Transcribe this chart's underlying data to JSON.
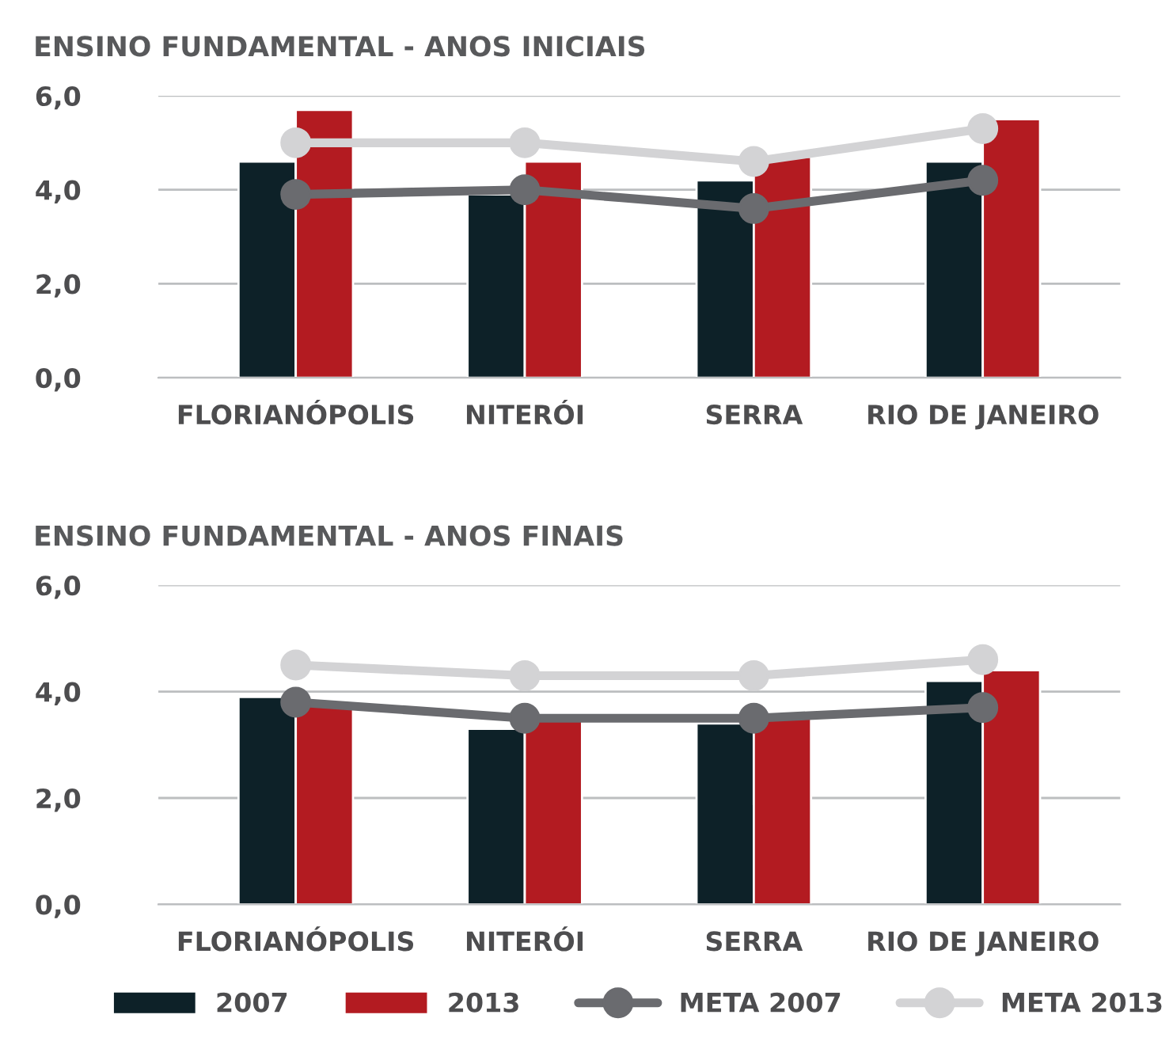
{
  "chart_data": [
    {
      "type": "bar",
      "title": "ENSINO FUNDAMENTAL - ANOS INICIAIS",
      "categories": [
        "FLORIANÓPOLIS",
        "NITERÓI",
        "SERRA",
        "RIO DE JANEIRO"
      ],
      "series": [
        {
          "color": "#0d2128",
          "values": [
            4.6,
            3.9,
            4.2,
            4.6
          ]
        },
        {
          "color": "#b31b21",
          "values": [
            5.7,
            4.6,
            4.7,
            5.5
          ]
        },
        {
          "type": "line",
          "color": "#6a6b6f",
          "values": [
            3.9,
            4.0,
            3.6,
            4.2
          ]
        },
        {
          "type": "line",
          "color": "#d3d3d5",
          "values": [
            5.0,
            5.0,
            4.6,
            5.3
          ]
        }
      ],
      "ylim": [
        0,
        6
      ],
      "yticks": [
        {
          "value": 0,
          "label": "0,0"
        },
        {
          "value": 2,
          "label": "2,0"
        },
        {
          "value": 4,
          "label": "4,0"
        },
        {
          "value": 6,
          "label": "6,0"
        }
      ],
      "grid": "y",
      "marker": "circle",
      "legend": false
    },
    {
      "type": "bar",
      "title": "ENSINO FUNDAMENTAL - ANOS FINAIS",
      "categories": [
        "FLORIANÓPOLIS",
        "NITERÓI",
        "SERRA",
        "RIO DE JANEIRO"
      ],
      "series": [
        {
          "name": "2007",
          "color": "#0d2128",
          "values": [
            3.9,
            3.3,
            3.4,
            4.2
          ]
        },
        {
          "name": "2013",
          "color": "#b31b21",
          "values": [
            3.8,
            3.5,
            3.5,
            4.4
          ]
        },
        {
          "name": "META 2007",
          "type": "line",
          "color": "#6a6b6f",
          "values": [
            3.8,
            3.5,
            3.5,
            3.7
          ]
        },
        {
          "name": "META 2013",
          "type": "line",
          "color": "#d3d3d5",
          "values": [
            4.5,
            4.3,
            4.3,
            4.6
          ]
        }
      ],
      "ylim": [
        0,
        6
      ],
      "yticks": [
        {
          "value": 0,
          "label": "0,0"
        },
        {
          "value": 2,
          "label": "2,0"
        },
        {
          "value": 4,
          "label": "4,0"
        },
        {
          "value": 6,
          "label": "6,0"
        }
      ],
      "grid": "y",
      "marker": "circle",
      "legend": "bottom"
    }
  ]
}
